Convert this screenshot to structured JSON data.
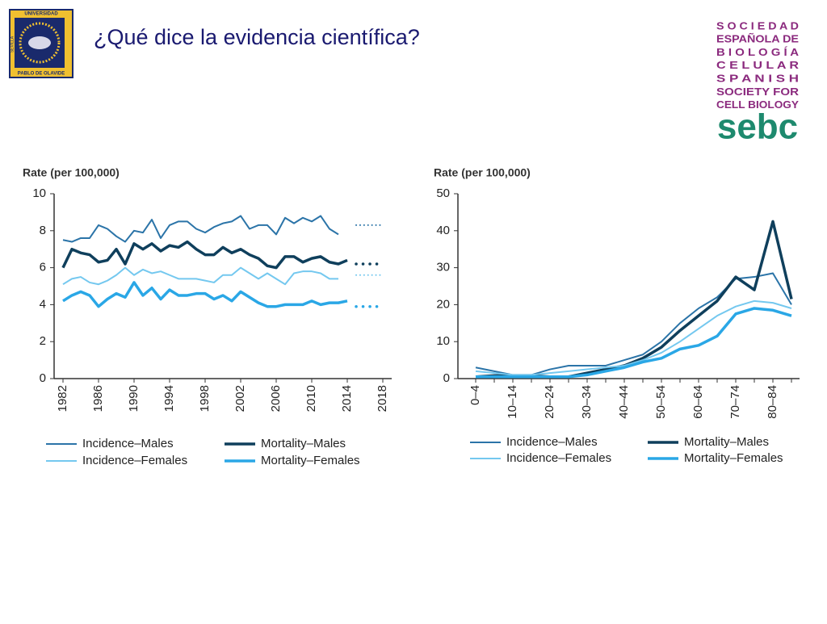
{
  "header": {
    "title": "¿Qué dice la evidencia científica?",
    "left_logo": {
      "top": "UNIVERSIDAD",
      "side": "SEVILLA",
      "bottom": "PABLO DE OLAVIDE"
    },
    "right_logo": {
      "lines": [
        "S O C I E D A D",
        "ESPAÑOLA DE",
        "B I O L O G Í A",
        "C E L U L A R",
        "S P A N I S H",
        "SOCIETY FOR",
        "CELL BIOLOGY"
      ],
      "mark": "sebc"
    }
  },
  "chart_data": [
    {
      "type": "line",
      "ylabel": "Rate (per 100,000)",
      "xlim": [
        1981,
        2019
      ],
      "ylim": [
        0,
        10
      ],
      "yticks": [
        0,
        2,
        4,
        6,
        8,
        10
      ],
      "xticks": [
        1982,
        1986,
        1990,
        1994,
        1998,
        2002,
        2006,
        2010,
        2014,
        2018
      ],
      "grid": false,
      "projection_start": 2015,
      "x": [
        1982,
        1983,
        1984,
        1985,
        1986,
        1987,
        1988,
        1989,
        1990,
        1991,
        1992,
        1993,
        1994,
        1995,
        1996,
        1997,
        1998,
        1999,
        2000,
        2001,
        2002,
        2003,
        2004,
        2005,
        2006,
        2007,
        2008,
        2009,
        2010,
        2011,
        2012,
        2013,
        2014,
        2015,
        2016,
        2017,
        2018
      ],
      "series": [
        {
          "name": "Incidence–Males",
          "color": "#2b74a8",
          "line_width": 2,
          "values": [
            7.5,
            7.4,
            7.6,
            7.6,
            8.3,
            8.1,
            7.7,
            7.4,
            8.0,
            7.9,
            8.6,
            7.6,
            8.3,
            8.5,
            8.5,
            8.1,
            7.9,
            8.2,
            8.4,
            8.5,
            8.8,
            8.1,
            8.3,
            8.3,
            7.8,
            8.7,
            8.4,
            8.7,
            8.5,
            8.8,
            8.1,
            7.8,
            null,
            8.3,
            8.3,
            8.3,
            8.3
          ]
        },
        {
          "name": "Mortality–Males",
          "color": "#0f3f5c",
          "line_width": 3.5,
          "values": [
            6.0,
            7.0,
            6.8,
            6.7,
            6.3,
            6.4,
            7.0,
            6.2,
            7.3,
            7.0,
            7.3,
            6.9,
            7.2,
            7.1,
            7.4,
            7.0,
            6.7,
            6.7,
            7.1,
            6.8,
            7.0,
            6.7,
            6.5,
            6.1,
            6.0,
            6.6,
            6.6,
            6.3,
            6.5,
            6.6,
            6.3,
            6.2,
            6.4,
            6.2,
            6.2,
            6.2,
            6.2
          ]
        },
        {
          "name": "Incidence–Females",
          "color": "#74c8ef",
          "line_width": 2,
          "values": [
            5.1,
            5.4,
            5.5,
            5.2,
            5.1,
            5.3,
            5.6,
            6.0,
            5.6,
            5.9,
            5.7,
            5.8,
            5.6,
            5.4,
            5.4,
            5.4,
            5.3,
            5.2,
            5.6,
            5.6,
            6.0,
            5.7,
            5.4,
            5.7,
            5.4,
            5.1,
            5.7,
            5.8,
            5.8,
            5.7,
            5.4,
            5.4,
            null,
            5.6,
            5.6,
            5.6,
            5.6
          ]
        },
        {
          "name": "Mortality–Females",
          "color": "#2aa7e6",
          "line_width": 3.5,
          "values": [
            4.2,
            4.5,
            4.7,
            4.5,
            3.9,
            4.3,
            4.6,
            4.4,
            5.2,
            4.5,
            4.9,
            4.3,
            4.8,
            4.5,
            4.5,
            4.6,
            4.6,
            4.3,
            4.5,
            4.2,
            4.7,
            4.4,
            4.1,
            3.9,
            3.9,
            4.0,
            4.0,
            4.0,
            4.2,
            4.0,
            4.1,
            4.1,
            4.2,
            3.9,
            3.9,
            3.9,
            3.9
          ]
        }
      ]
    },
    {
      "type": "line",
      "ylabel": "Rate (per 100,000)",
      "ylim": [
        0,
        50
      ],
      "yticks": [
        0,
        10,
        20,
        30,
        40,
        50
      ],
      "grid": false,
      "categories": [
        "0–4",
        null,
        "10–14",
        null,
        "20–24",
        null,
        "30–34",
        null,
        "40–44",
        null,
        "50–54",
        null,
        "60–64",
        null,
        "70–74",
        null,
        "80–84",
        null
      ],
      "series": [
        {
          "name": "Incidence–Males",
          "color": "#2b74a8",
          "line_width": 2,
          "values": [
            3,
            2,
            1,
            1,
            2.5,
            3.5,
            3.5,
            3.5,
            5,
            6.5,
            10,
            15,
            19,
            22,
            27,
            27.5,
            28.5,
            20
          ]
        },
        {
          "name": "Mortality–Males",
          "color": "#0f3f5c",
          "line_width": 3.5,
          "values": [
            0.5,
            0.8,
            0.8,
            0.8,
            0.5,
            0.5,
            1.5,
            2.5,
            3.5,
            5.5,
            8.5,
            13,
            17,
            21,
            27.5,
            24,
            42.5,
            21.5
          ]
        },
        {
          "name": "Incidence–Females",
          "color": "#74c8ef",
          "line_width": 2,
          "values": [
            2,
            1.5,
            1,
            1,
            1.5,
            2,
            2.5,
            3,
            3.5,
            5,
            7,
            10,
            13.5,
            17,
            19.5,
            21,
            20.5,
            19
          ]
        },
        {
          "name": "Mortality–Females",
          "color": "#2aa7e6",
          "line_width": 3.5,
          "values": [
            0.5,
            0.5,
            0.5,
            0.5,
            0.5,
            0.5,
            1,
            2,
            3,
            4.5,
            5.5,
            8,
            9,
            11.5,
            17.5,
            19,
            18.5,
            17
          ]
        }
      ]
    }
  ]
}
